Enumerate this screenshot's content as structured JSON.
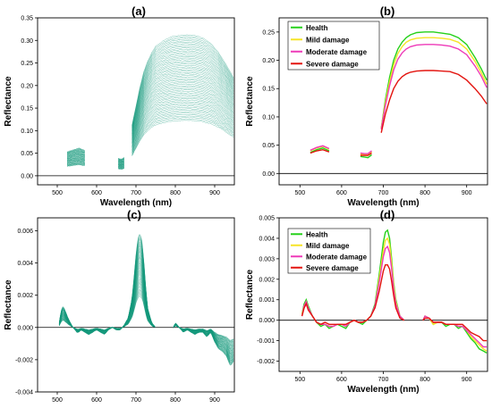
{
  "figure": {
    "panels": [
      "(a)",
      "(b)",
      "(c)",
      "(d)"
    ]
  },
  "colors": {
    "spectra": "#12987a",
    "Health": "#26d11a",
    "Mild damage": "#f6e427",
    "Moderate damage": "#ee3ab8",
    "Severe damage": "#e3140f"
  },
  "chart_data": [
    {
      "panel": "(a)",
      "type": "line",
      "xlabel": "Wavelength (nm)",
      "ylabel": "Reflectance",
      "xlim": [
        450,
        950
      ],
      "ylim": [
        -0.02,
        0.35
      ],
      "xticks": [
        500,
        600,
        700,
        800,
        900
      ],
      "yticks": [
        0.0,
        0.05,
        0.1,
        0.15,
        0.2,
        0.25,
        0.3,
        0.35
      ],
      "ytick_labels": [
        "0.00",
        "0.05",
        "0.10",
        "0.15",
        "0.20",
        "0.25",
        "0.30",
        "0.35"
      ],
      "segments": [
        [
          525,
          570
        ],
        [
          655,
          672
        ],
        [
          690,
          948
        ]
      ],
      "spectra_count": 60,
      "mean_spectrum": {
        "x": [
          525,
          540,
          555,
          570,
          655,
          663,
          672,
          690,
          700,
          710,
          720,
          730,
          740,
          750,
          770,
          790,
          810,
          830,
          850,
          870,
          890,
          910,
          930,
          948
        ],
        "y": [
          0.038,
          0.041,
          0.044,
          0.04,
          0.028,
          0.026,
          0.03,
          0.08,
          0.11,
          0.14,
          0.165,
          0.182,
          0.195,
          0.205,
          0.214,
          0.22,
          0.222,
          0.223,
          0.222,
          0.218,
          0.21,
          0.195,
          0.175,
          0.155
        ]
      },
      "spread_range": [
        0.55,
        1.4
      ]
    },
    {
      "panel": "(b)",
      "type": "line",
      "xlabel": "Wavelength (nm)",
      "ylabel": "Reflectance",
      "xlim": [
        450,
        950
      ],
      "ylim": [
        -0.02,
        0.275
      ],
      "xticks": [
        500,
        600,
        700,
        800,
        900
      ],
      "yticks": [
        0.0,
        0.05,
        0.1,
        0.15,
        0.2,
        0.25
      ],
      "ytick_labels": [
        "0.00",
        "0.05",
        "0.10",
        "0.15",
        "0.20",
        "0.25"
      ],
      "legend_position": "top-left",
      "segments": [
        [
          525,
          570
        ],
        [
          645,
          672
        ],
        [
          695,
          948
        ]
      ],
      "series": [
        {
          "name": "Health",
          "x": [
            525,
            540,
            555,
            570,
            645,
            655,
            663,
            672,
            695,
            705,
            715,
            725,
            735,
            745,
            755,
            765,
            780,
            800,
            820,
            840,
            860,
            880,
            900,
            920,
            935,
            948
          ],
          "y": [
            0.037,
            0.042,
            0.045,
            0.04,
            0.03,
            0.029,
            0.028,
            0.033,
            0.08,
            0.13,
            0.17,
            0.2,
            0.22,
            0.232,
            0.24,
            0.245,
            0.249,
            0.25,
            0.25,
            0.248,
            0.246,
            0.24,
            0.228,
            0.205,
            0.185,
            0.165
          ]
        },
        {
          "name": "Mild damage",
          "x": [
            525,
            540,
            555,
            570,
            645,
            655,
            663,
            672,
            695,
            705,
            715,
            725,
            735,
            745,
            755,
            765,
            780,
            800,
            820,
            840,
            860,
            880,
            900,
            920,
            935,
            948
          ],
          "y": [
            0.04,
            0.045,
            0.048,
            0.043,
            0.034,
            0.033,
            0.033,
            0.038,
            0.08,
            0.125,
            0.162,
            0.192,
            0.212,
            0.224,
            0.232,
            0.236,
            0.239,
            0.24,
            0.24,
            0.239,
            0.237,
            0.232,
            0.22,
            0.198,
            0.178,
            0.158
          ]
        },
        {
          "name": "Moderate damage",
          "x": [
            525,
            540,
            555,
            570,
            645,
            655,
            663,
            672,
            695,
            705,
            715,
            725,
            735,
            745,
            755,
            765,
            780,
            800,
            820,
            840,
            860,
            880,
            900,
            920,
            935,
            948
          ],
          "y": [
            0.041,
            0.046,
            0.049,
            0.044,
            0.036,
            0.035,
            0.035,
            0.04,
            0.078,
            0.12,
            0.155,
            0.183,
            0.202,
            0.213,
            0.22,
            0.224,
            0.227,
            0.228,
            0.228,
            0.227,
            0.225,
            0.22,
            0.21,
            0.19,
            0.172,
            0.152
          ]
        },
        {
          "name": "Severe damage",
          "x": [
            525,
            540,
            555,
            570,
            645,
            655,
            663,
            672,
            695,
            705,
            715,
            725,
            735,
            745,
            755,
            765,
            780,
            800,
            820,
            840,
            860,
            880,
            900,
            920,
            935,
            948
          ],
          "y": [
            0.036,
            0.04,
            0.042,
            0.038,
            0.032,
            0.032,
            0.032,
            0.036,
            0.072,
            0.105,
            0.13,
            0.15,
            0.163,
            0.171,
            0.176,
            0.179,
            0.181,
            0.182,
            0.182,
            0.181,
            0.18,
            0.175,
            0.165,
            0.15,
            0.137,
            0.123
          ]
        }
      ]
    },
    {
      "panel": "(c)",
      "type": "line",
      "xlabel": "Wavelength (nm)",
      "ylabel": "Reflectance",
      "xlim": [
        450,
        950
      ],
      "ylim": [
        -0.004,
        0.0068
      ],
      "xticks": [
        500,
        600,
        700,
        800,
        900
      ],
      "yticks": [
        -0.004,
        -0.002,
        0.0,
        0.002,
        0.004,
        0.006
      ],
      "ytick_labels": [
        "-0.004",
        "-0.002",
        "0.000",
        "0.002",
        "0.004",
        "0.006"
      ],
      "segments": [
        [
          505,
          750
        ],
        [
          795,
          948
        ]
      ],
      "spectra_count": 60,
      "mean_spectrum": {
        "x": [
          505,
          510,
          515,
          520,
          530,
          540,
          550,
          555,
          560,
          570,
          580,
          590,
          600,
          610,
          620,
          630,
          640,
          650,
          660,
          670,
          680,
          690,
          700,
          705,
          710,
          715,
          720,
          725,
          730,
          740,
          750,
          795,
          800,
          810,
          820,
          830,
          840,
          850,
          860,
          870,
          880,
          890,
          900,
          910,
          920,
          930,
          940,
          948
        ],
        "y": [
          0.0002,
          0.0007,
          0.0009,
          0.0007,
          0.0003,
          0.0,
          -0.0002,
          -0.0002,
          -0.0001,
          -0.0002,
          -0.0003,
          -0.0002,
          -0.0001,
          -0.0002,
          -0.0003,
          -0.0001,
          0.0,
          -0.0001,
          -0.0001,
          0.0001,
          0.0004,
          0.0012,
          0.003,
          0.0037,
          0.0039,
          0.0036,
          0.0028,
          0.0016,
          0.0008,
          0.0002,
          0.0,
          0.0,
          0.0002,
          0.0,
          -0.0002,
          -0.0001,
          -0.0002,
          -0.0003,
          -0.0002,
          -0.0002,
          -0.0004,
          -0.0002,
          -0.0006,
          -0.0009,
          -0.001,
          -0.0012,
          -0.0016,
          -0.0014
        ]
      },
      "spread_range": [
        0.5,
        1.5
      ]
    },
    {
      "panel": "(d)",
      "type": "line",
      "xlabel": "Wavelength (nm)",
      "ylabel": "Reflectance",
      "xlim": [
        450,
        950
      ],
      "ylim": [
        -0.0025,
        0.005
      ],
      "xticks": [
        500,
        600,
        700,
        800,
        900
      ],
      "yticks": [
        -0.002,
        -0.001,
        0.0,
        0.001,
        0.002,
        0.003,
        0.004,
        0.005
      ],
      "ytick_labels": [
        "-0.002",
        "-0.001",
        "0.000",
        "0.001",
        "0.002",
        "0.003",
        "0.004",
        "0.005"
      ],
      "legend_position": "top-left",
      "segments": [
        [
          505,
          750
        ],
        [
          795,
          948
        ]
      ],
      "series": [
        {
          "name": "Health",
          "x": [
            505,
            510,
            515,
            520,
            530,
            540,
            550,
            560,
            570,
            580,
            590,
            600,
            610,
            620,
            630,
            640,
            650,
            660,
            670,
            680,
            690,
            700,
            705,
            710,
            715,
            720,
            725,
            730,
            740,
            750,
            795,
            800,
            810,
            820,
            830,
            840,
            850,
            860,
            870,
            880,
            890,
            900,
            910,
            920,
            930,
            940,
            948
          ],
          "y": [
            0.0003,
            0.0008,
            0.001,
            0.0007,
            0.0002,
            -0.0001,
            -0.0003,
            -0.0002,
            -0.0004,
            -0.0003,
            -0.0002,
            -0.0003,
            -0.0004,
            -0.0001,
            0.0,
            -0.0001,
            -0.0002,
            0.0,
            0.0002,
            0.0008,
            0.0022,
            0.0038,
            0.0043,
            0.0044,
            0.004,
            0.003,
            0.0018,
            0.001,
            0.0002,
            0.0,
            0.0,
            0.0002,
            0.0001,
            -0.0002,
            -0.0001,
            -0.0001,
            -0.0003,
            -0.0002,
            -0.0002,
            -0.0004,
            -0.0003,
            -0.0006,
            -0.0009,
            -0.0011,
            -0.0014,
            -0.0015,
            -0.0016
          ]
        },
        {
          "name": "Mild damage",
          "x": [
            505,
            510,
            515,
            520,
            530,
            540,
            550,
            560,
            570,
            580,
            590,
            600,
            610,
            620,
            630,
            640,
            650,
            660,
            670,
            680,
            690,
            700,
            705,
            710,
            715,
            720,
            725,
            730,
            740,
            750,
            795,
            800,
            810,
            820,
            830,
            840,
            850,
            860,
            870,
            880,
            890,
            900,
            910,
            920,
            930,
            940,
            948
          ],
          "y": [
            0.0003,
            0.0007,
            0.0009,
            0.0006,
            0.0002,
            -0.0001,
            -0.0002,
            -0.0002,
            -0.0003,
            -0.0003,
            -0.0002,
            -0.0002,
            -0.0003,
            -0.0001,
            0.0,
            -0.0001,
            -0.0001,
            0.0,
            0.0002,
            0.0007,
            0.002,
            0.0034,
            0.0039,
            0.004,
            0.0037,
            0.0028,
            0.0017,
            0.0009,
            0.0002,
            0.0,
            0.0,
            0.0002,
            0.0001,
            -0.0002,
            -0.0001,
            -0.0001,
            -0.0002,
            -0.0002,
            -0.0002,
            -0.0003,
            -0.0003,
            -0.0005,
            -0.0008,
            -0.001,
            -0.0012,
            -0.0014,
            -0.0015
          ]
        },
        {
          "name": "Moderate damage",
          "x": [
            505,
            510,
            515,
            520,
            530,
            540,
            550,
            560,
            570,
            580,
            590,
            600,
            610,
            620,
            630,
            640,
            650,
            660,
            670,
            680,
            690,
            700,
            705,
            710,
            715,
            720,
            725,
            730,
            740,
            750,
            795,
            800,
            810,
            820,
            830,
            840,
            850,
            860,
            870,
            880,
            890,
            900,
            910,
            920,
            930,
            940,
            948
          ],
          "y": [
            0.0002,
            0.0007,
            0.0009,
            0.0006,
            0.0002,
            -0.0001,
            -0.0002,
            -0.0002,
            -0.0003,
            -0.0003,
            -0.0002,
            -0.0002,
            -0.0003,
            -0.0001,
            0.0,
            -0.0001,
            -0.0001,
            0.0,
            0.0002,
            0.0007,
            0.0018,
            0.0031,
            0.0035,
            0.0036,
            0.0033,
            0.0025,
            0.0015,
            0.0008,
            0.0002,
            0.0,
            0.0,
            0.0002,
            0.0001,
            -0.0001,
            -0.0001,
            -0.0001,
            -0.0002,
            -0.0002,
            -0.0002,
            -0.0003,
            -0.0003,
            -0.0005,
            -0.0007,
            -0.0009,
            -0.0011,
            -0.0013,
            -0.0013
          ]
        },
        {
          "name": "Severe damage",
          "x": [
            505,
            510,
            515,
            520,
            530,
            540,
            550,
            560,
            570,
            580,
            590,
            600,
            610,
            620,
            630,
            640,
            650,
            660,
            670,
            680,
            690,
            700,
            705,
            710,
            715,
            720,
            725,
            730,
            740,
            750,
            795,
            800,
            810,
            820,
            830,
            840,
            850,
            860,
            870,
            880,
            890,
            900,
            910,
            920,
            930,
            940,
            948
          ],
          "y": [
            0.0002,
            0.0006,
            0.0008,
            0.0005,
            0.0002,
            -0.0001,
            -0.0002,
            -0.0001,
            -0.0002,
            -0.0002,
            -0.0002,
            -0.0002,
            -0.0002,
            -0.0001,
            0.0,
            -0.0001,
            -0.0001,
            0.0,
            0.0002,
            0.0006,
            0.0014,
            0.0024,
            0.0027,
            0.0027,
            0.0025,
            0.0019,
            0.0012,
            0.0006,
            0.0001,
            0.0,
            0.0,
            0.0001,
            0.0001,
            -0.0001,
            -0.0001,
            -0.0001,
            -0.0002,
            -0.0002,
            -0.0002,
            -0.0002,
            -0.0002,
            -0.0004,
            -0.0006,
            -0.0007,
            -0.0008,
            -0.001,
            -0.001
          ]
        }
      ]
    }
  ]
}
